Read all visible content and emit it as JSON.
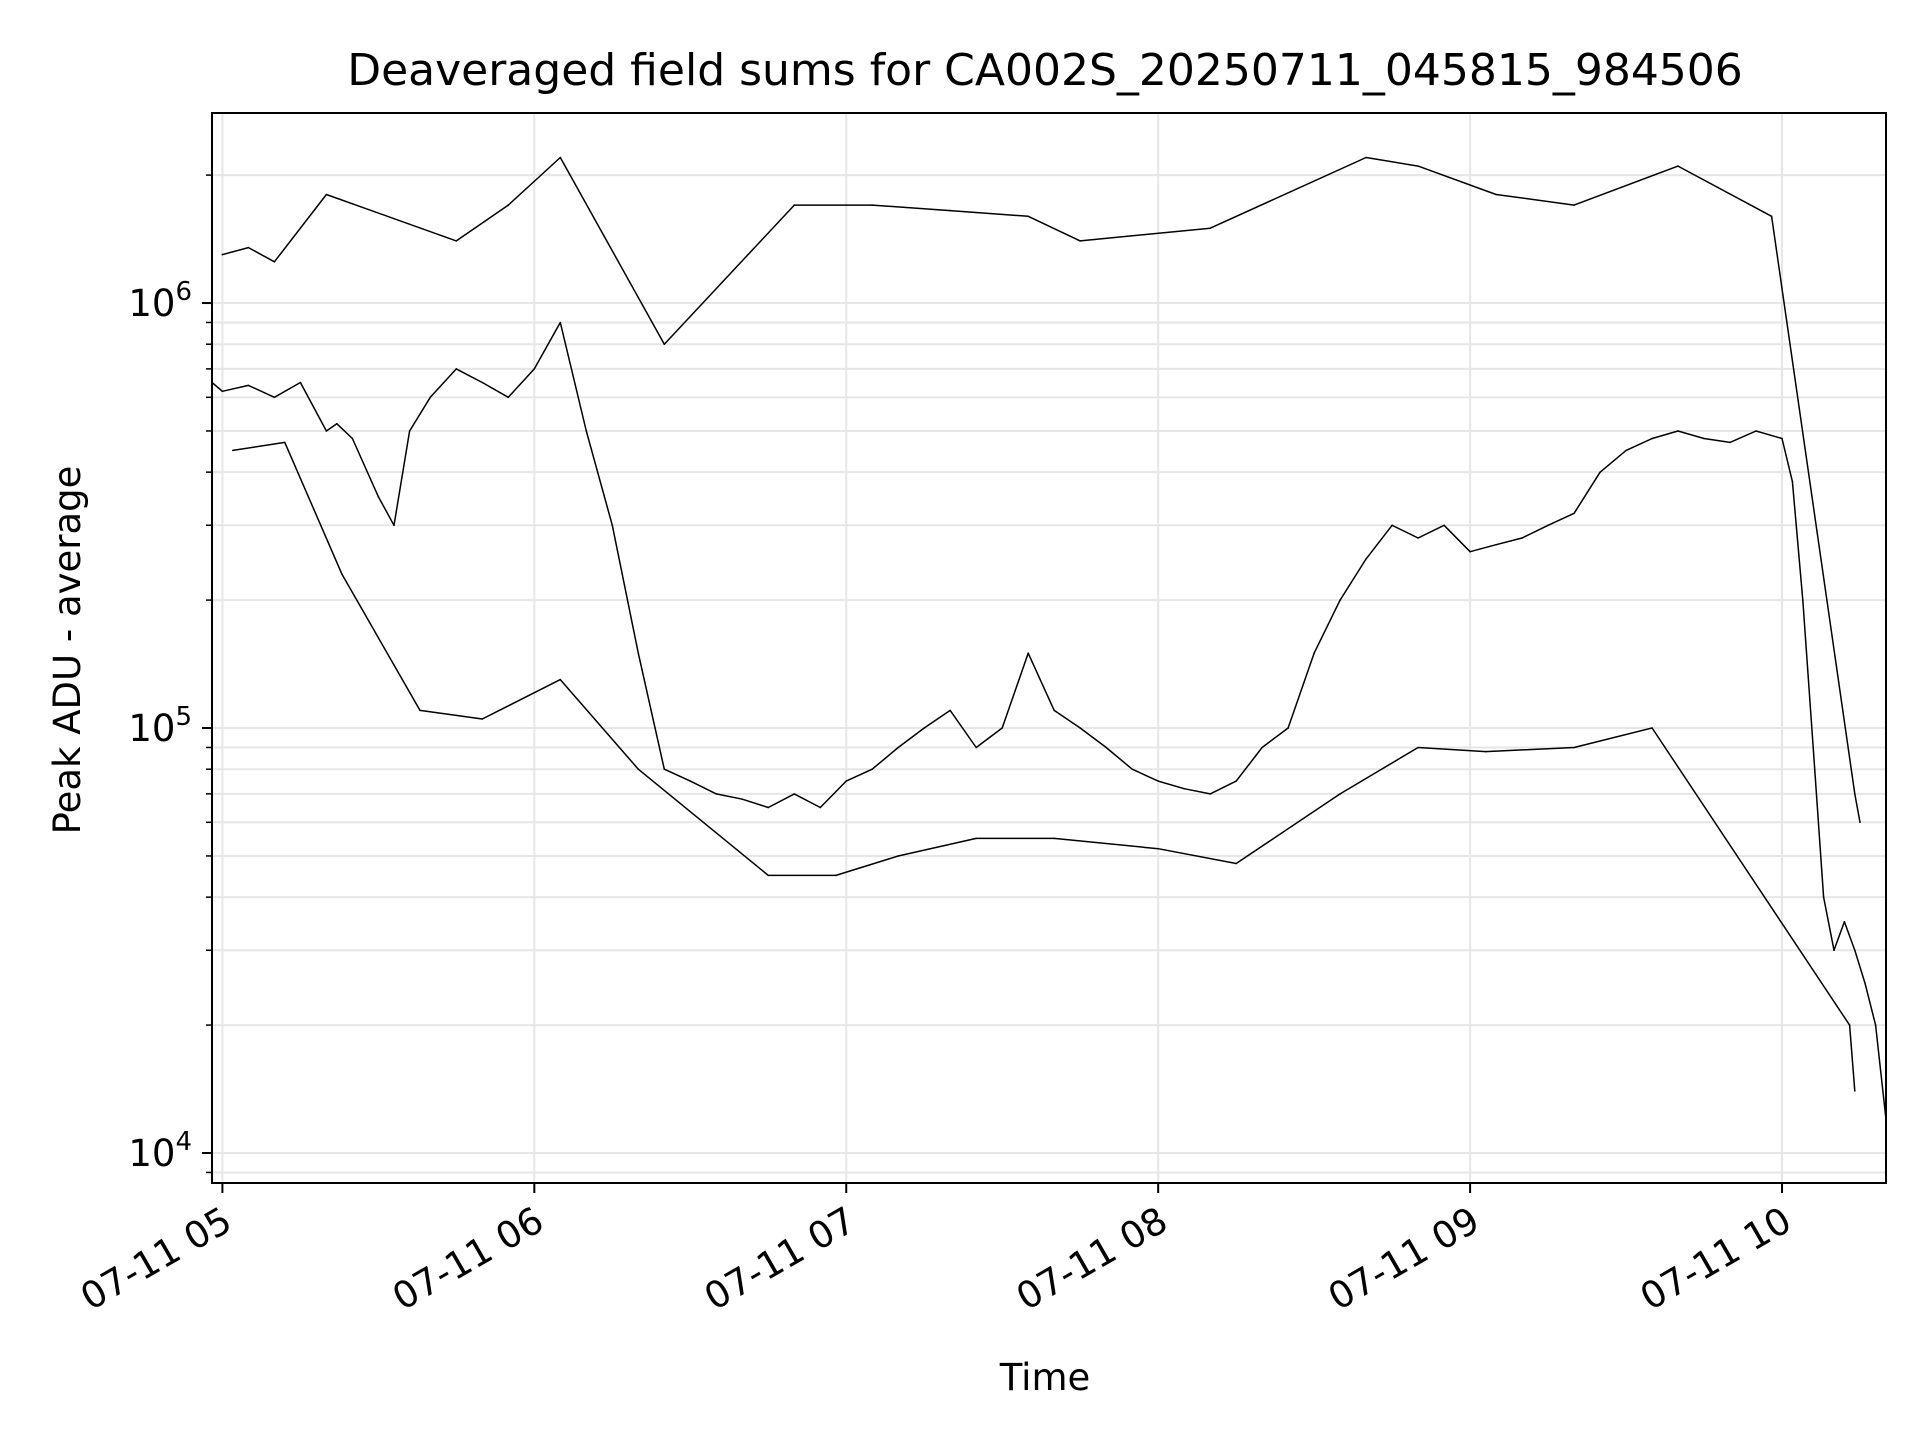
{
  "chart_data": {
    "type": "line",
    "title": "Deaveraged field sums for CA002S_20250711_045815_984506",
    "xlabel": "Time",
    "ylabel": "Peak ADU - average",
    "yscale": "log",
    "ylim": [
      8500,
      2800000
    ],
    "xlim": [
      "07-11 04:58",
      "07-11 10:20"
    ],
    "grid": true,
    "legend": "none",
    "line_color": "#000000",
    "x_ticks": [
      "07-11 05",
      "07-11 06",
      "07-11 07",
      "07-11 08",
      "07-11 09",
      "07-11 10"
    ],
    "y_ticks": [
      {
        "base": "10",
        "exp": "4"
      },
      {
        "base": "10",
        "exp": "5"
      },
      {
        "base": "10",
        "exp": "6"
      }
    ],
    "series": [
      {
        "x": [
          "07-11 04:58",
          "07-11 05:00",
          "07-11 05:05",
          "07-11 05:10",
          "07-11 05:15",
          "07-11 05:20",
          "07-11 05:22",
          "07-11 05:25",
          "07-11 05:30",
          "07-11 05:33",
          "07-11 05:36",
          "07-11 05:40",
          "07-11 05:45",
          "07-11 05:50",
          "07-11 05:55",
          "07-11 06:00",
          "07-11 06:05",
          "07-11 06:10",
          "07-11 06:15",
          "07-11 06:20",
          "07-11 06:25",
          "07-11 06:30",
          "07-11 06:35",
          "07-11 06:40",
          "07-11 06:45",
          "07-11 06:50",
          "07-11 06:55",
          "07-11 07:00",
          "07-11 07:05",
          "07-11 07:10",
          "07-11 07:15",
          "07-11 07:20",
          "07-11 07:25",
          "07-11 07:30",
          "07-11 07:35",
          "07-11 07:40",
          "07-11 07:45",
          "07-11 07:50",
          "07-11 07:55",
          "07-11 08:00",
          "07-11 08:05",
          "07-11 08:10",
          "07-11 08:15",
          "07-11 08:20",
          "07-11 08:25",
          "07-11 08:30",
          "07-11 08:35",
          "07-11 08:40",
          "07-11 08:45",
          "07-11 08:50",
          "07-11 08:55",
          "07-11 09:00",
          "07-11 09:05",
          "07-11 09:10",
          "07-11 09:15",
          "07-11 09:20",
          "07-11 09:25",
          "07-11 09:30",
          "07-11 09:35",
          "07-11 09:40",
          "07-11 09:45",
          "07-11 09:50",
          "07-11 09:55",
          "07-11 10:00",
          "07-11 10:02",
          "07-11 10:04",
          "07-11 10:06",
          "07-11 10:08",
          "07-11 10:10",
          "07-11 10:12",
          "07-11 10:14",
          "07-11 10:16",
          "07-11 10:18",
          "07-11 10:20"
        ],
        "y": [
          650000,
          620000,
          640000,
          600000,
          650000,
          500000,
          520000,
          480000,
          350000,
          300000,
          500000,
          600000,
          700000,
          650000,
          600000,
          700000,
          900000,
          500000,
          300000,
          150000,
          80000,
          75000,
          70000,
          68000,
          65000,
          70000,
          65000,
          75000,
          80000,
          90000,
          100000,
          110000,
          90000,
          100000,
          150000,
          110000,
          100000,
          90000,
          80000,
          75000,
          72000,
          70000,
          75000,
          90000,
          100000,
          150000,
          200000,
          250000,
          300000,
          280000,
          300000,
          260000,
          270000,
          280000,
          300000,
          320000,
          400000,
          450000,
          480000,
          500000,
          480000,
          470000,
          500000,
          480000,
          380000,
          200000,
          90000,
          40000,
          30000,
          35000,
          30000,
          25000,
          20000,
          12000
        ]
      },
      {
        "x": [
          "07-11 05:00",
          "07-11 05:05",
          "07-11 05:10",
          "07-11 05:20",
          "07-11 05:45",
          "07-11 05:55",
          "07-11 06:05",
          "07-11 06:25",
          "07-11 06:50",
          "07-11 07:05",
          "07-11 07:20",
          "07-11 07:35",
          "07-11 07:45",
          "07-11 08:10",
          "07-11 08:40",
          "07-11 08:50",
          "07-11 09:05",
          "07-11 09:20",
          "07-11 09:40",
          "07-11 09:58",
          "07-11 10:14",
          "07-11 10:15"
        ],
        "y": [
          1300000,
          1350000,
          1250000,
          1800000,
          1400000,
          1700000,
          2200000,
          800000,
          1700000,
          1700000,
          1650000,
          1600000,
          1400000,
          1500000,
          2200000,
          2100000,
          1800000,
          1700000,
          2100000,
          1600000,
          70000,
          60000
        ]
      },
      {
        "x": [
          "07-11 05:02",
          "07-11 05:12",
          "07-11 05:23",
          "07-11 05:38",
          "07-11 05:50",
          "07-11 06:05",
          "07-11 06:20",
          "07-11 06:45",
          "07-11 06:58",
          "07-11 07:10",
          "07-11 07:25",
          "07-11 07:40",
          "07-11 08:00",
          "07-11 08:15",
          "07-11 08:35",
          "07-11 08:50",
          "07-11 09:03",
          "07-11 09:20",
          "07-11 09:35",
          "07-11 10:13",
          "07-11 10:14"
        ],
        "y": [
          450000,
          470000,
          230000,
          110000,
          105000,
          130000,
          80000,
          45000,
          45000,
          50000,
          55000,
          55000,
          52000,
          48000,
          70000,
          90000,
          88000,
          90000,
          100000,
          20000,
          14000
        ]
      }
    ]
  }
}
